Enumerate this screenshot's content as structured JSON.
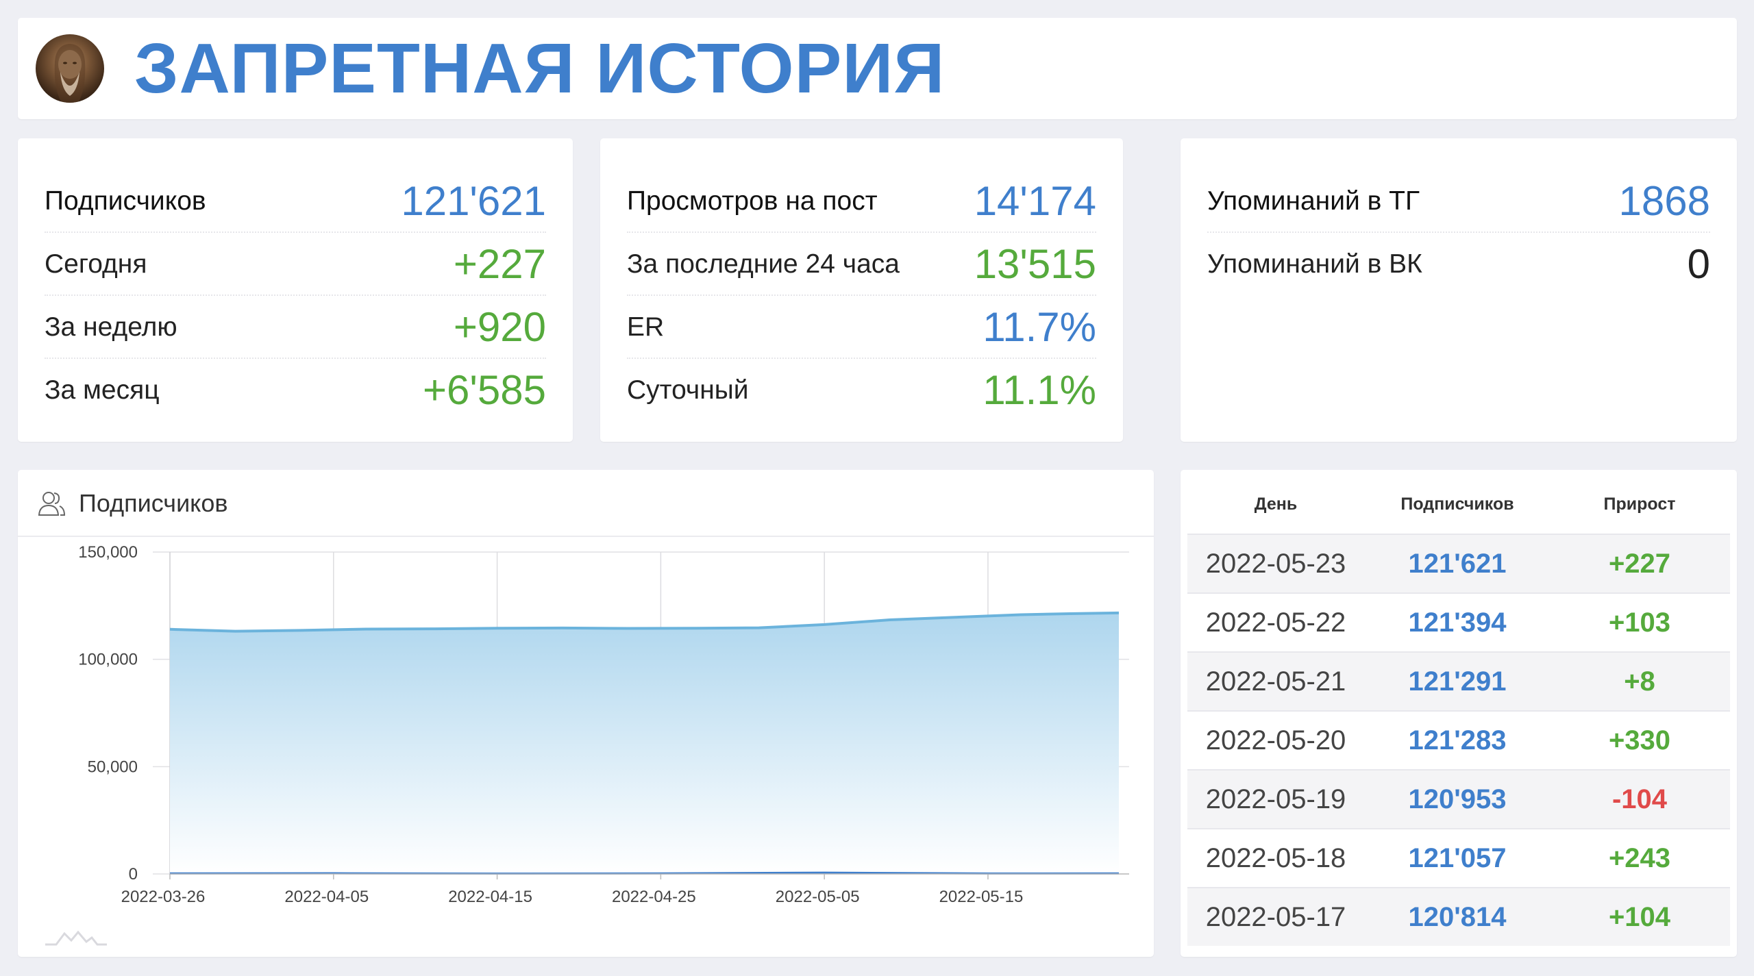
{
  "header": {
    "title": "ЗАПРЕТНАЯ ИСТОРИЯ",
    "avatar_icon": "portrait-avatar"
  },
  "subscribers_card": {
    "rows": [
      {
        "label": "Подписчиков",
        "value": "121'621",
        "color": "blue"
      },
      {
        "label": "Сегодня",
        "value": "+227",
        "color": "green"
      },
      {
        "label": "За неделю",
        "value": "+920",
        "color": "green"
      },
      {
        "label": "За месяц",
        "value": "+6'585",
        "color": "green"
      }
    ]
  },
  "views_card": {
    "rows": [
      {
        "label": "Просмотров на пост",
        "value": "14'174",
        "color": "blue"
      },
      {
        "label": "За последние 24 часа",
        "value": "13'515",
        "color": "green"
      },
      {
        "label": "ER",
        "value": "11.7%",
        "color": "blue"
      },
      {
        "label": "Суточный",
        "value": "11.1%",
        "color": "green"
      }
    ]
  },
  "mentions_card": {
    "rows": [
      {
        "label": "Упоминаний в ТГ",
        "value": "1868",
        "color": "blue"
      },
      {
        "label": "Упоминаний в ВК",
        "value": "0",
        "color": "dark"
      }
    ]
  },
  "chart_panel": {
    "title": "Подписчиков",
    "icon": "users-icon"
  },
  "chart_data": {
    "type": "area",
    "title": "Подписчиков",
    "xlabel": "",
    "ylabel": "",
    "ylim": [
      0,
      150000
    ],
    "y_ticks": [
      "0",
      "50,000",
      "100,000",
      "150,000"
    ],
    "x_ticks": [
      "2022-03-26",
      "2022-04-05",
      "2022-04-15",
      "2022-04-25",
      "2022-05-05",
      "2022-05-15"
    ],
    "grid": true,
    "series": [
      {
        "name": "",
        "color": "#6bb3dc",
        "x": [
          "2022-03-26",
          "2022-03-30",
          "2022-04-03",
          "2022-04-07",
          "2022-04-11",
          "2022-04-15",
          "2022-04-19",
          "2022-04-23",
          "2022-04-27",
          "2022-05-01",
          "2022-05-05",
          "2022-05-09",
          "2022-05-13",
          "2022-05-17",
          "2022-05-20",
          "2022-05-23"
        ],
        "values": [
          114000,
          113100,
          113500,
          114100,
          114200,
          114500,
          114600,
          114400,
          114500,
          114700,
          116200,
          118400,
          119600,
          120814,
          121283,
          121621
        ]
      },
      {
        "name": "",
        "color": "#3f7fcc",
        "x": [
          "2022-03-26",
          "2022-04-05",
          "2022-04-15",
          "2022-04-25",
          "2022-05-05",
          "2022-05-15",
          "2022-05-23"
        ],
        "values": [
          227,
          300,
          150,
          250,
          600,
          200,
          227
        ]
      }
    ]
  },
  "table": {
    "headers": {
      "day": "День",
      "subs": "Подписчиков",
      "growth": "Прирост"
    },
    "rows": [
      {
        "day": "2022-05-23",
        "subs": "121'621",
        "growth": "+227",
        "sign": "pos"
      },
      {
        "day": "2022-05-22",
        "subs": "121'394",
        "growth": "+103",
        "sign": "pos"
      },
      {
        "day": "2022-05-21",
        "subs": "121'291",
        "growth": "+8",
        "sign": "pos"
      },
      {
        "day": "2022-05-20",
        "subs": "121'283",
        "growth": "+330",
        "sign": "pos"
      },
      {
        "day": "2022-05-19",
        "subs": "120'953",
        "growth": "-104",
        "sign": "neg"
      },
      {
        "day": "2022-05-18",
        "subs": "121'057",
        "growth": "+243",
        "sign": "pos"
      },
      {
        "day": "2022-05-17",
        "subs": "120'814",
        "growth": "+104",
        "sign": "pos"
      }
    ]
  }
}
